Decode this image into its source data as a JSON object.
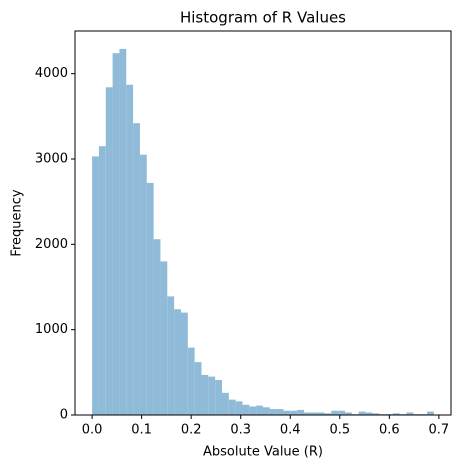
{
  "chart_data": {
    "type": "histogram",
    "title": "Histogram of R Values",
    "x_label": "Absolute Value (R)",
    "y_label": "Frequency",
    "bins": [
      0,
      0.0138,
      0.0276,
      0.0414,
      0.0552,
      0.069,
      0.0828,
      0.0966,
      0.1104,
      0.1242,
      0.138,
      0.1518,
      0.1656,
      0.1794,
      0.1932,
      0.207,
      0.2208,
      0.2346,
      0.2484,
      0.2622,
      0.276,
      0.2898,
      0.3036,
      0.3174,
      0.3312,
      0.345,
      0.3588,
      0.3726,
      0.3864,
      0.4002,
      0.414,
      0.4278,
      0.4416,
      0.4554,
      0.4692,
      0.483,
      0.4968,
      0.5106,
      0.5244,
      0.5382,
      0.552,
      0.5658,
      0.5796,
      0.5934,
      0.6072,
      0.621,
      0.6348,
      0.6486,
      0.6624,
      0.6762,
      0.69
    ],
    "values": [
      3030,
      3150,
      3840,
      4240,
      4290,
      3870,
      3420,
      3050,
      2720,
      2060,
      1800,
      1390,
      1240,
      1200,
      790,
      620,
      470,
      450,
      410,
      260,
      180,
      160,
      120,
      100,
      110,
      90,
      70,
      70,
      50,
      50,
      60,
      30,
      30,
      30,
      20,
      50,
      50,
      30,
      10,
      40,
      30,
      20,
      10,
      10,
      20,
      10,
      30,
      10,
      10,
      40
    ],
    "color": "#8fbbd9",
    "xlim": [
      -0.0345,
      0.7245
    ],
    "xticks": [
      {
        "value": 0,
        "label": "0.0"
      },
      {
        "value": 0.1,
        "label": "0.1"
      },
      {
        "value": 0.2,
        "label": "0.2"
      },
      {
        "value": 0.3,
        "label": "0.3"
      },
      {
        "value": 0.4,
        "label": "0.4"
      },
      {
        "value": 0.5,
        "label": "0.5"
      },
      {
        "value": 0.6,
        "label": "0.6"
      },
      {
        "value": 0.7,
        "label": "0.7"
      }
    ],
    "ylim": [
      0,
      4500
    ],
    "yticks": [
      0,
      1000,
      2000,
      3000,
      4000
    ]
  }
}
